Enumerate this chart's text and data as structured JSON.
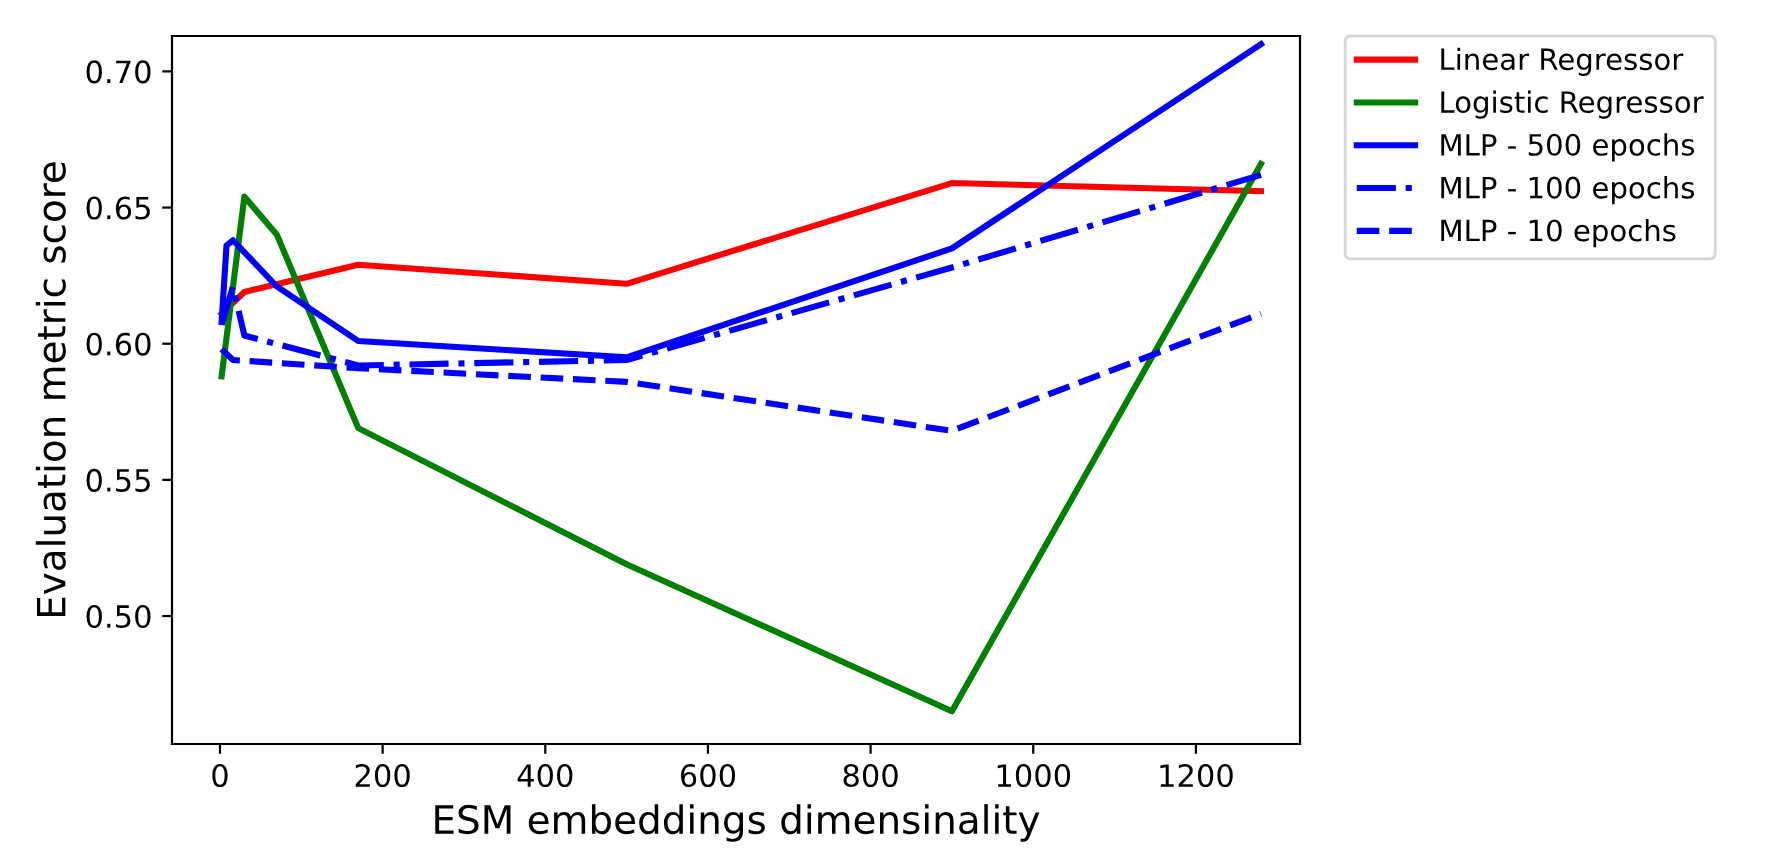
{
  "chart_data": {
    "type": "line",
    "xlabel": "ESM embeddings dimensinality",
    "ylabel": "Evaluation metric score",
    "xlim": [
      -59,
      1328
    ],
    "xticks": [
      0,
      200,
      400,
      600,
      800,
      1000,
      1200
    ],
    "ylim": [
      0.453,
      0.713
    ],
    "yticks": [
      {
        "value": 0.5,
        "label": "0.50"
      },
      {
        "value": 0.55,
        "label": "0.55"
      },
      {
        "value": 0.6,
        "label": "0.60"
      },
      {
        "value": 0.65,
        "label": "0.65"
      },
      {
        "value": 0.7,
        "label": "0.70"
      }
    ],
    "grid": false,
    "legend": "top right",
    "marker": "none",
    "series": [
      {
        "name": "Linear Regressor",
        "color": "#ff0000",
        "line_style": "solid",
        "x": [
          2,
          30,
          170,
          500,
          900,
          1280
        ],
        "values": [
          0.611,
          0.619,
          0.629,
          0.622,
          0.659,
          0.656
        ]
      },
      {
        "name": "Logistic Regressor",
        "color": "#008000",
        "line_style": "solid",
        "x": [
          2,
          30,
          70,
          170,
          500,
          900,
          1280
        ],
        "values": [
          0.588,
          0.654,
          0.64,
          0.569,
          0.519,
          0.465,
          0.666
        ]
      },
      {
        "name": "MLP - 500 epochs",
        "color": "#0000ff",
        "line_style": "solid",
        "x": [
          2,
          8,
          16,
          70,
          170,
          500,
          900,
          1280
        ],
        "values": [
          0.608,
          0.636,
          0.638,
          0.621,
          0.601,
          0.595,
          0.635,
          0.71
        ]
      },
      {
        "name": "MLP - 100 epochs",
        "color": "#0000ff",
        "line_style": "dashdot",
        "x": [
          2,
          16,
          30,
          170,
          500,
          900,
          1280
        ],
        "values": [
          0.607,
          0.621,
          0.603,
          0.592,
          0.594,
          0.628,
          0.662
        ]
      },
      {
        "name": "MLP - 10 epochs",
        "color": "#0000ff",
        "line_style": "dashed",
        "x": [
          2,
          16,
          170,
          500,
          900,
          1280
        ],
        "values": [
          0.598,
          0.594,
          0.591,
          0.586,
          0.568,
          0.611
        ]
      }
    ]
  }
}
